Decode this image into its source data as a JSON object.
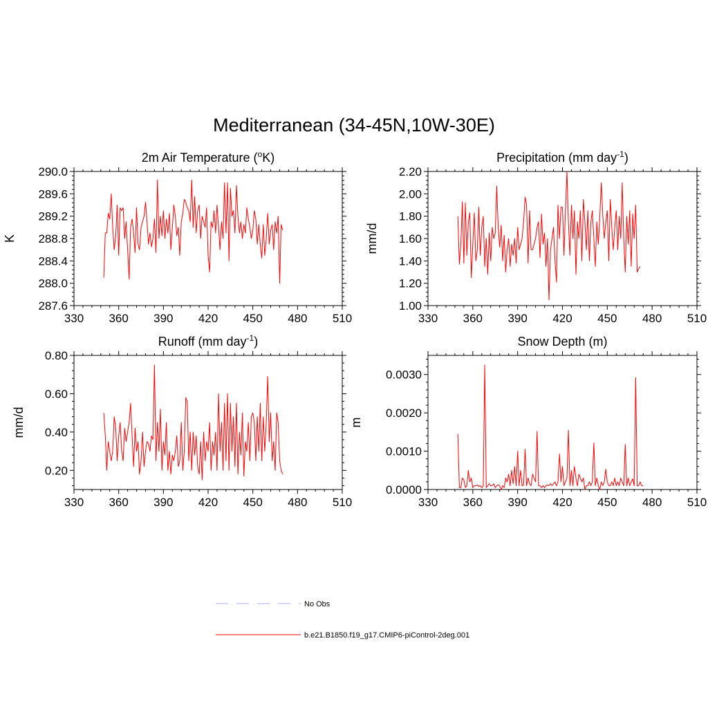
{
  "title": "Mediterranean (34-45N,10W-30E)",
  "legend": [
    {
      "label": "No Obs",
      "color": "#a8a8ff",
      "style": "dashed"
    },
    {
      "label": "b.e21.B1850.f19_g17.CMIP6-piControl-2deg.001",
      "color": "#ff0000",
      "style": "solid"
    }
  ],
  "chart_data": [
    {
      "type": "line",
      "title": "2m Air Temperature (",
      "title_sup": "o",
      "title_tail": "K)",
      "ylabel": "K",
      "xlim": [
        330,
        510
      ],
      "ylim": [
        287.6,
        290.0
      ],
      "xticks": [
        330,
        360,
        390,
        420,
        450,
        480,
        510
      ],
      "yticks": [
        287.6,
        288.0,
        288.4,
        288.8,
        289.2,
        289.6,
        290.0
      ],
      "yticklabels": [
        "287.6",
        "288.0",
        "288.4",
        "288.8",
        "289.2",
        "289.6",
        "290.0"
      ],
      "color": "#ff0000",
      "x_start": 350,
      "values": [
        288.1,
        288.9,
        288.9,
        289.25,
        289.15,
        289.6,
        289.0,
        288.6,
        288.85,
        289.4,
        288.5,
        289.35,
        289.3,
        289.35,
        288.8,
        289.1,
        288.6,
        288.07,
        289.0,
        289.15,
        288.9,
        288.55,
        289.35,
        288.7,
        288.6,
        289.0,
        289.1,
        289.2,
        289.45,
        289.1,
        288.7,
        288.9,
        288.65,
        288.8,
        289.15,
        288.55,
        289.85,
        288.8,
        289.2,
        288.85,
        289.3,
        288.8,
        289.15,
        288.9,
        289.25,
        288.6,
        289.0,
        289.4,
        289.2,
        288.85,
        289.0,
        288.5,
        289.1,
        289.25,
        289.5,
        289.45,
        289.35,
        289.3,
        289.1,
        289.85,
        289.0,
        289.55,
        288.9,
        289.3,
        289.4,
        288.8,
        289.2,
        289.1,
        289.0,
        289.35,
        288.5,
        288.2,
        289.1,
        289.0,
        289.3,
        288.9,
        289.4,
        289.0,
        288.6,
        289.1,
        288.8,
        289.8,
        288.9,
        289.8,
        288.4,
        289.7,
        289.2,
        289.3,
        288.9,
        289.75,
        289.2,
        288.9,
        289.1,
        288.8,
        289.05,
        288.9,
        289.35,
        289.15,
        289.0,
        288.8,
        288.95,
        289.3,
        289.15,
        288.7,
        289.05,
        288.7,
        288.45,
        289.05,
        288.5,
        288.8,
        289.25,
        288.7,
        288.95,
        289.05,
        288.6,
        289.1,
        288.9,
        289.2,
        288.0,
        289.05,
        288.95
      ]
    },
    {
      "type": "line",
      "title": "Precipitation (mm day",
      "title_sup": "-1",
      "title_tail": ")",
      "ylabel": "mm/d",
      "xlim": [
        330,
        510
      ],
      "ylim": [
        1.0,
        2.2
      ],
      "xticks": [
        330,
        360,
        390,
        420,
        450,
        480,
        510
      ],
      "yticks": [
        1.0,
        1.2,
        1.4,
        1.6,
        1.8,
        2.0,
        2.2
      ],
      "yticklabels": [
        "1.00",
        "1.20",
        "1.40",
        "1.60",
        "1.80",
        "2.00",
        "2.20"
      ],
      "color": "#ff0000",
      "x_start": 350,
      "values": [
        1.8,
        1.37,
        1.55,
        1.93,
        1.38,
        1.92,
        1.45,
        1.75,
        1.83,
        1.25,
        1.55,
        1.83,
        1.4,
        1.5,
        1.88,
        1.45,
        1.7,
        1.8,
        1.35,
        1.6,
        1.28,
        1.65,
        1.4,
        1.7,
        1.6,
        1.65,
        2.07,
        1.7,
        1.52,
        1.72,
        1.4,
        1.63,
        1.3,
        1.5,
        1.6,
        1.35,
        1.55,
        1.45,
        1.6,
        1.38,
        1.7,
        1.5,
        1.55,
        1.6,
        1.75,
        1.97,
        1.9,
        1.38,
        1.85,
        1.5,
        1.5,
        1.55,
        1.6,
        1.7,
        1.75,
        1.43,
        1.82,
        1.55,
        1.65,
        1.35,
        1.6,
        1.05,
        1.5,
        1.6,
        1.7,
        1.4,
        1.21,
        1.9,
        1.6,
        1.88,
        1.88,
        1.45,
        1.85,
        2.2,
        1.75,
        1.45,
        1.9,
        1.6,
        1.85,
        1.28,
        1.75,
        1.6,
        1.85,
        1.4,
        1.95,
        1.75,
        1.5,
        1.85,
        1.4,
        1.75,
        1.85,
        1.6,
        1.35,
        1.75,
        1.55,
        1.8,
        2.1,
        1.8,
        1.6,
        1.75,
        1.85,
        1.4,
        1.95,
        1.7,
        1.5,
        1.7,
        1.85,
        1.5,
        1.8,
        1.6,
        2.1,
        1.6,
        1.3,
        1.8,
        1.55,
        1.85,
        1.35,
        1.82,
        1.6,
        1.9,
        1.3,
        1.33,
        1.35
      ]
    },
    {
      "type": "line",
      "title": "Runoff (mm day",
      "title_sup": "-1",
      "title_tail": ")",
      "ylabel": "mm/d",
      "xlim": [
        330,
        510
      ],
      "ylim": [
        0.1,
        0.8
      ],
      "xticks": [
        330,
        360,
        390,
        420,
        450,
        480,
        510
      ],
      "yticks": [
        0.2,
        0.4,
        0.6,
        0.8
      ],
      "yticklabels": [
        "0.20",
        "0.40",
        "0.60",
        "0.80"
      ],
      "color": "#ff0000",
      "x_start": 350,
      "values": [
        0.5,
        0.38,
        0.2,
        0.35,
        0.3,
        0.25,
        0.3,
        0.48,
        0.42,
        0.25,
        0.38,
        0.45,
        0.3,
        0.25,
        0.42,
        0.35,
        0.4,
        0.45,
        0.55,
        0.38,
        0.22,
        0.42,
        0.3,
        0.35,
        0.18,
        0.25,
        0.4,
        0.22,
        0.3,
        0.35,
        0.34,
        0.3,
        0.38,
        0.36,
        0.75,
        0.25,
        0.45,
        0.3,
        0.52,
        0.2,
        0.35,
        0.28,
        0.45,
        0.2,
        0.3,
        0.18,
        0.28,
        0.25,
        0.3,
        0.38,
        0.22,
        0.25,
        0.45,
        0.2,
        0.3,
        0.58,
        0.56,
        0.25,
        0.4,
        0.2,
        0.4,
        0.28,
        0.38,
        0.22,
        0.18,
        0.35,
        0.15,
        0.4,
        0.25,
        0.35,
        0.3,
        0.45,
        0.2,
        0.35,
        0.28,
        0.4,
        0.2,
        0.6,
        0.3,
        0.45,
        0.2,
        0.55,
        0.25,
        0.6,
        0.2,
        0.55,
        0.3,
        0.48,
        0.22,
        0.55,
        0.18,
        0.4,
        0.28,
        0.5,
        0.17,
        0.35,
        0.3,
        0.45,
        0.25,
        0.48,
        0.5,
        0.45,
        0.25,
        0.48,
        0.3,
        0.55,
        0.25,
        0.48,
        0.3,
        0.45,
        0.69,
        0.35,
        0.5,
        0.25,
        0.35,
        0.2,
        0.5,
        0.45,
        0.25,
        0.2,
        0.18
      ]
    },
    {
      "type": "line",
      "title": "Snow Depth (m)",
      "title_sup": "",
      "title_tail": "",
      "ylabel": "m",
      "xlim": [
        330,
        510
      ],
      "ylim": [
        0.0,
        0.0035
      ],
      "xticks": [
        330,
        360,
        390,
        420,
        450,
        480,
        510
      ],
      "yticks": [
        0.0,
        0.001,
        0.002,
        0.003
      ],
      "yticklabels": [
        "0.0000",
        "0.0010",
        "0.0020",
        "0.0030"
      ],
      "color": "#ff0000",
      "x_start": 350,
      "values": [
        0.00145,
        5e-05,
        5e-05,
        0.0003,
        0.00025,
        5e-05,
        0.0001,
        0.0005,
        0.0002,
        0.0003,
        5e-05,
        0.0001,
        0.0001,
        0.00012,
        8e-05,
        0.0001,
        5e-05,
        0.0001,
        0.00325,
        5e-05,
        0.0001,
        0.00015,
        0.0001,
        0.0001,
        0.00015,
        5e-05,
        0.0001,
        0.00012,
        0.0001,
        0.0,
        0.0001,
        5e-05,
        0.0003,
        0.0002,
        0.0004,
        0.0001,
        0.0005,
        0.00015,
        0.0006,
        0.0001,
        0.001,
        0.0001,
        0.0005,
        0.0001,
        0.00012,
        0.00105,
        0.0001,
        0.0003,
        0.00015,
        0.0001,
        0.0004,
        0.0003,
        0.0002,
        0.00152,
        0.0001,
        0.0001,
        5e-05,
        0.0001,
        5e-05,
        0.0001,
        0.00012,
        0.0001,
        0.00015,
        0.0001,
        0.00015,
        0.0002,
        0.0001,
        0.0002,
        0.00093,
        0.0002,
        0.0006,
        0.0001,
        0.0002,
        0.0003,
        0.00155,
        0.0001,
        0.0005,
        0.0001,
        0.0006,
        0.0003,
        0.0001,
        0.0004,
        0.0003,
        0.0002,
        0.0003,
        0.0,
        0.0001,
        0.0001,
        0.0002,
        0.0001,
        0.0002,
        0.00122,
        0.0001,
        0.0003,
        0.0001,
        0.0,
        0.0002,
        0.0001,
        0.0002,
        0.00053,
        0.0002,
        0.0001,
        0.0001,
        0.0002,
        0.0001,
        0.0003,
        0.0001,
        0.0002,
        0.0001,
        0.0003,
        0.0002,
        0.0001,
        0.00118,
        0.0001,
        0.0003,
        0.0001,
        0.0002,
        0.00028,
        0.0001,
        0.00292,
        0.0001,
        0.0001,
        0.0002,
        0.0001,
        0.0001
      ]
    }
  ]
}
